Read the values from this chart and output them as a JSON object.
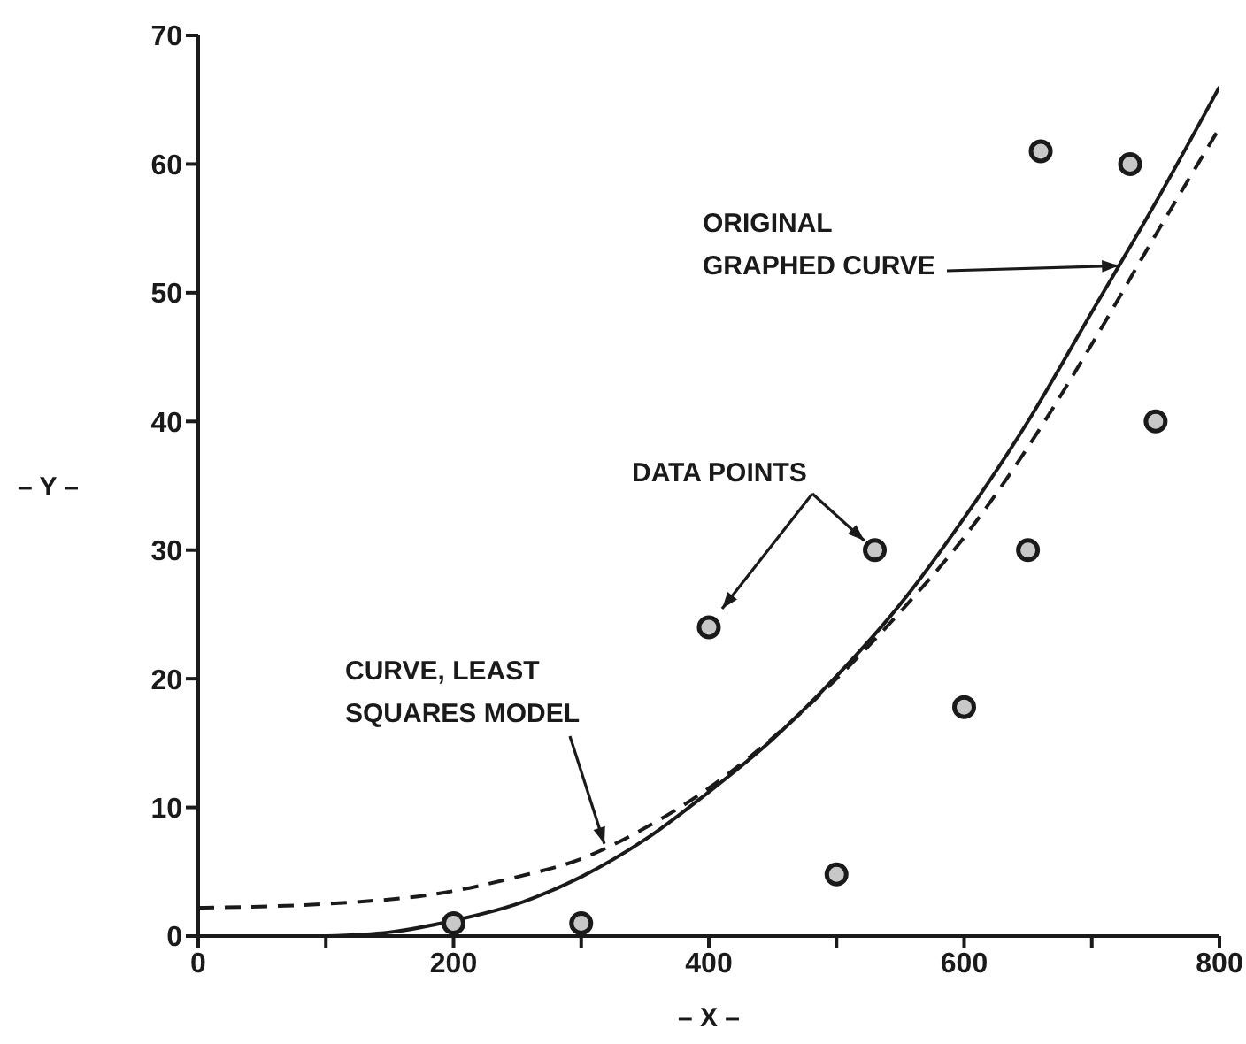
{
  "chart_data": {
    "type": "scatter",
    "xlabel": "– X –",
    "ylabel": "– Y –",
    "xlim": [
      0,
      800
    ],
    "ylim": [
      0,
      70
    ],
    "xticks": [
      0,
      {
        "value": 100,
        "label": null
      },
      200,
      {
        "value": 300,
        "label": null
      },
      400,
      {
        "value": 500,
        "label": null
      },
      600,
      {
        "value": 700,
        "label": null
      },
      800
    ],
    "yticks": [
      0,
      10,
      20,
      30,
      40,
      50,
      60,
      70
    ],
    "series": [
      {
        "marker": "circle",
        "color": "#1a1a1a",
        "x": [
          200,
          300,
          400,
          500,
          530,
          600,
          650,
          660,
          730,
          750
        ],
        "values": [
          1,
          1,
          24,
          4.8,
          30,
          17.8,
          30,
          61,
          60,
          40
        ]
      },
      {
        "type": "line",
        "marker": "none",
        "line_style": "solid",
        "color": "#1a1a1a",
        "x": [
          100,
          150,
          200,
          250,
          300,
          350,
          400,
          450,
          500,
          550,
          600,
          650,
          700,
          750,
          800
        ],
        "values": [
          0,
          0.3,
          1.2,
          2.5,
          4.6,
          7.5,
          11.2,
          15.3,
          20.2,
          25.8,
          32.5,
          40,
          48.5,
          57,
          66
        ]
      },
      {
        "type": "line",
        "marker": "none",
        "line_style": "dashed",
        "color": "#1a1a1a",
        "x": [
          0,
          100,
          200,
          250,
          300,
          350,
          400,
          450,
          500,
          550,
          600,
          650,
          700,
          750,
          800
        ],
        "values": [
          2.2,
          2.5,
          3.5,
          4.6,
          6,
          8.4,
          11.5,
          15.4,
          20,
          25.2,
          31,
          38,
          46,
          54.5,
          62.8
        ]
      }
    ],
    "annotations": [
      {
        "text": "ORIGINAL\nGRAPHED CURVE",
        "x": 721,
        "y": 52.1
      },
      {
        "text": "DATA POINTS",
        "x": 530,
        "y": 30
      },
      {
        "text": "CURVE, LEAST\nSQUARES MODEL",
        "x": 319,
        "y": 6.9
      }
    ]
  }
}
